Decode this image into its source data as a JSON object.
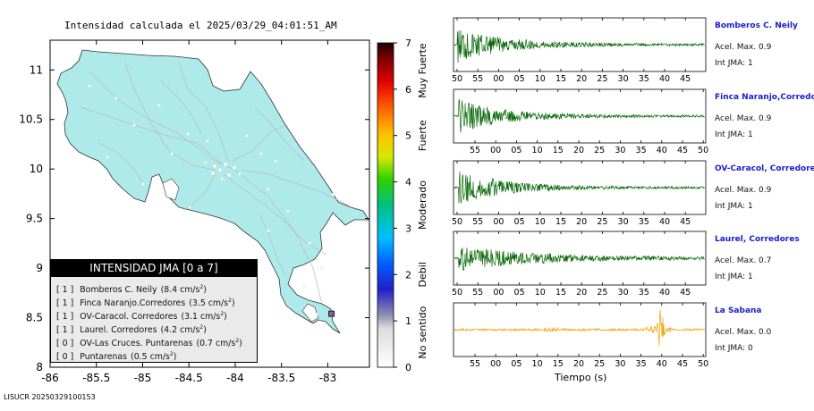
{
  "map": {
    "title": "Intensidad calculada el 2025/03/29_04:01:51_AM",
    "x_ticks": [
      "-86",
      "-85.5",
      "-85",
      "-84.5",
      "-84",
      "-83.5",
      "-83"
    ],
    "y_ticks": [
      "11",
      "10.5",
      "10",
      "9.5",
      "9",
      "8.5",
      "8"
    ],
    "xlim": [
      -86,
      -82.55
    ],
    "ylim": [
      8,
      11.3
    ],
    "land_color": "#aeeaea",
    "sea_color": "#ffffff"
  },
  "colorbar": {
    "ticks": [
      "0",
      "1",
      "2",
      "3",
      "4",
      "5",
      "6",
      "7"
    ],
    "range": [
      0,
      7
    ],
    "category_labels": [
      "No sentido",
      "Debil",
      "Moderado",
      "Fuerte",
      "Muy Fuerte"
    ]
  },
  "legend": {
    "title": "INTENSIDAD JMA [0 a 7]",
    "items": [
      {
        "jma": "[ 1 ]",
        "station": "Bomberos C. Neily",
        "accel": "(8.4 cm/s",
        "unit_sup": "2",
        "close": ")"
      },
      {
        "jma": "[ 1 ]",
        "station": "Finca Naranjo.Corredores",
        "accel": "(3.5 cm/s",
        "unit_sup": "2",
        "close": ")"
      },
      {
        "jma": "[ 1 ]",
        "station": "OV-Caracol. Corredores",
        "accel": "(3.1 cm/s",
        "unit_sup": "2",
        "close": ")"
      },
      {
        "jma": "[ 1 ]",
        "station": "Laurel. Corredores",
        "accel": "(4.2 cm/s",
        "unit_sup": "2",
        "close": ")"
      },
      {
        "jma": "[ 0 ]",
        "station": "OV-Las Cruces. Puntarenas",
        "accel": "(0.7 cm/s",
        "unit_sup": "2",
        "close": ")"
      },
      {
        "jma": "[ 0 ]",
        "station": "Puntarenas",
        "accel": "(0.5 cm/s",
        "unit_sup": "2",
        "close": ")"
      }
    ]
  },
  "footer": "LISUCR 20250329100153",
  "waveforms": {
    "xlabel": "Tiempo (s)",
    "panels": [
      {
        "name": "Bomberos C. Neily",
        "accel": "Acel. Max. 0.9",
        "jma": "Int JMA: 1",
        "color": "#0d6b0d",
        "ticks": [
          "50",
          "55",
          "00",
          "05",
          "10",
          "15",
          "20",
          "25",
          "30",
          "35",
          "40",
          "45"
        ]
      },
      {
        "name": "Finca Naranjo,Corredores",
        "accel": "Acel. Max. 0.9",
        "jma": "Int JMA: 1",
        "color": "#0d6b0d",
        "ticks": [
          "55",
          "00",
          "05",
          "10",
          "15",
          "20",
          "25",
          "30",
          "35",
          "40",
          "45",
          "50"
        ]
      },
      {
        "name": "OV-Caracol, Corredores",
        "accel": "Acel. Max. 0.9",
        "jma": "Int JMA: 1",
        "color": "#0d6b0d",
        "ticks": [
          "50",
          "55",
          "00",
          "05",
          "10",
          "15",
          "20",
          "25",
          "30",
          "35",
          "40",
          "45"
        ]
      },
      {
        "name": "Laurel, Corredores",
        "accel": "Acel. Max. 0.7",
        "jma": "Int JMA: 1",
        "color": "#0d6b0d",
        "ticks": [
          "50",
          "55",
          "00",
          "05",
          "10",
          "15",
          "20",
          "25",
          "30",
          "35",
          "40",
          "45"
        ]
      },
      {
        "name": "La Sabana",
        "accel": "Acel. Max. 0.0",
        "jma": "Int JMA: 0",
        "color": "#f0a000",
        "ticks": [
          "55",
          "00",
          "05",
          "10",
          "15",
          "20",
          "25",
          "30",
          "35",
          "40",
          "45",
          "50"
        ]
      }
    ]
  },
  "chart_data": [
    {
      "type": "scatter",
      "title": "Intensidad calculada el 2025/03/29_04:01:51_AM",
      "xlabel": "",
      "ylabel": "",
      "xlim": [
        -86,
        -82.55
      ],
      "ylim": [
        8,
        11.3
      ],
      "series": [
        {
          "values": [
            [
              -82.96,
              8.54
            ]
          ]
        }
      ],
      "colorbar_range": [
        0,
        7
      ],
      "legend": [
        {
          "station": "Bomberos C. Neily",
          "jma": 1,
          "accel_cm_s2": 8.4
        },
        {
          "station": "Finca Naranjo.Corredores",
          "jma": 1,
          "accel_cm_s2": 3.5
        },
        {
          "station": "OV-Caracol. Corredores",
          "jma": 1,
          "accel_cm_s2": 3.1
        },
        {
          "station": "Laurel. Corredores",
          "jma": 1,
          "accel_cm_s2": 4.2
        },
        {
          "station": "OV-Las Cruces. Puntarenas",
          "jma": 0,
          "accel_cm_s2": 0.7
        },
        {
          "station": "Puntarenas",
          "jma": 0,
          "accel_cm_s2": 0.5
        }
      ]
    },
    {
      "type": "line",
      "xlabel": "Tiempo (s)",
      "series": [
        {
          "name": "Bomberos C. Neily",
          "max_accel": 0.9,
          "jma": 1
        },
        {
          "name": "Finca Naranjo,Corredores",
          "max_accel": 0.9,
          "jma": 1
        },
        {
          "name": "OV-Caracol, Corredores",
          "max_accel": 0.9,
          "jma": 1
        },
        {
          "name": "Laurel, Corredores",
          "max_accel": 0.7,
          "jma": 1
        },
        {
          "name": "La Sabana",
          "max_accel": 0.0,
          "jma": 0
        }
      ]
    }
  ]
}
